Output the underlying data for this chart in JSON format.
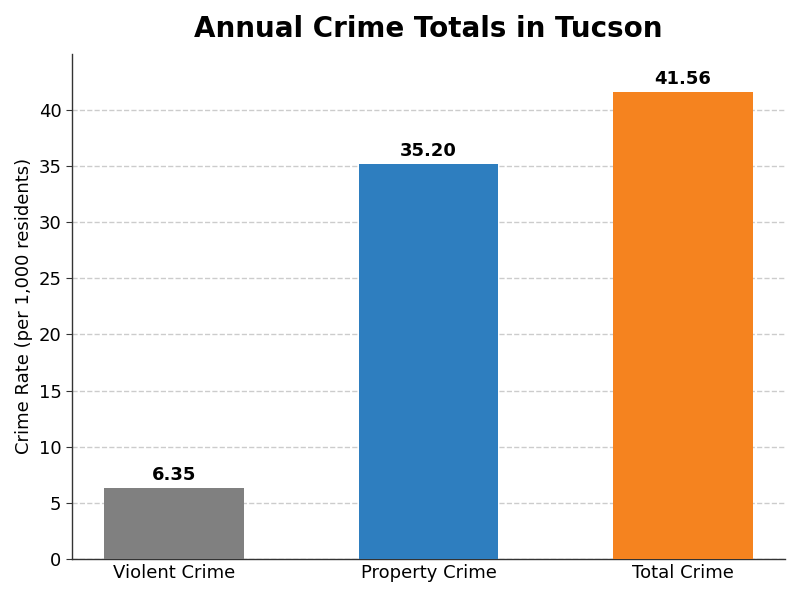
{
  "categories": [
    "Violent Crime",
    "Property Crime",
    "Total Crime"
  ],
  "values": [
    6.35,
    35.2,
    41.56
  ],
  "bar_colors": [
    "#808080",
    "#2e7ebf",
    "#f5831f"
  ],
  "title": "Annual Crime Totals in Tucson",
  "ylabel": "Crime Rate (per 1,000 residents)",
  "ylim": [
    0,
    45
  ],
  "yticks": [
    0,
    5,
    10,
    15,
    20,
    25,
    30,
    35,
    40
  ],
  "title_fontsize": 20,
  "label_fontsize": 13,
  "tick_fontsize": 13,
  "annotation_fontsize": 13,
  "background_color": "#ffffff",
  "axes_bg_color": "#ffffff",
  "grid_color": "#cccccc",
  "bar_width": 0.55
}
